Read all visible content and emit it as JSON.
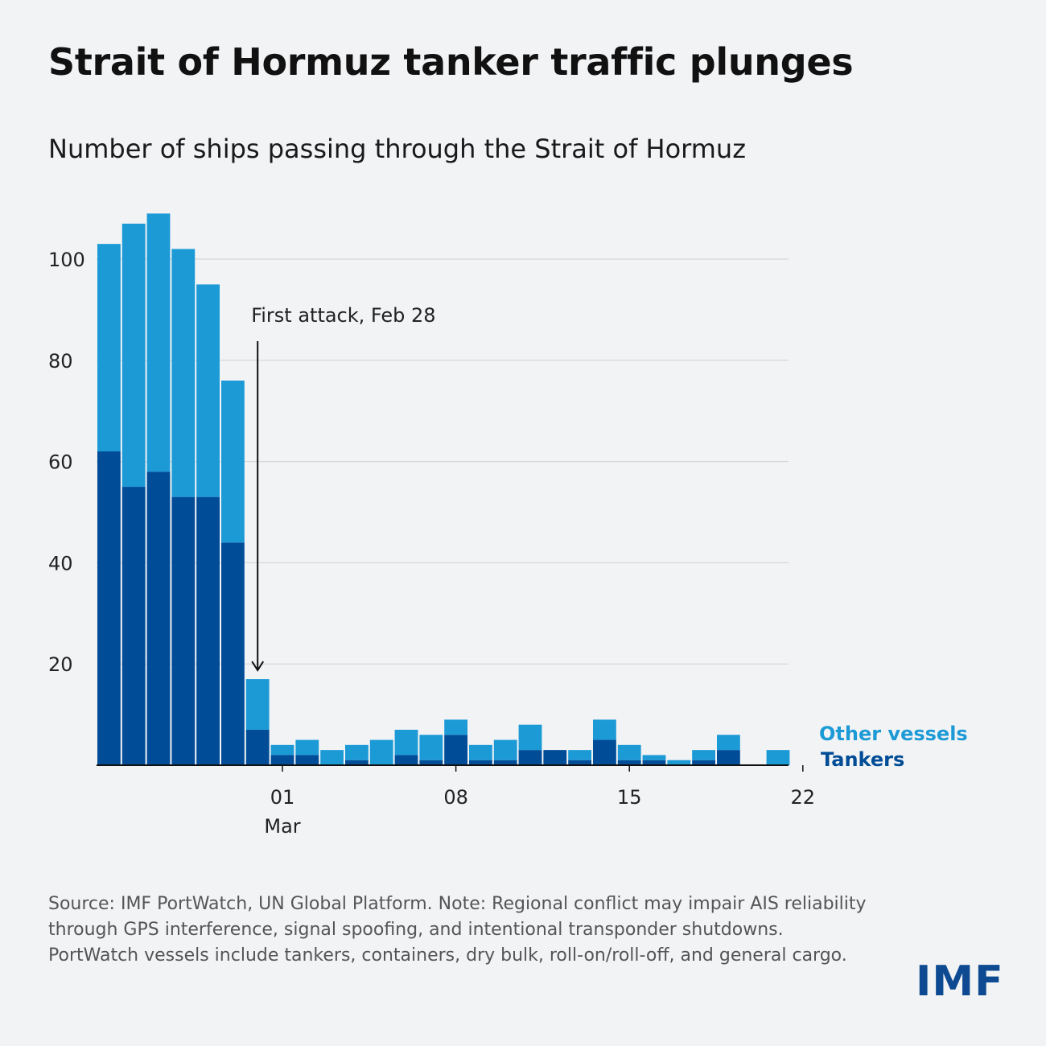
{
  "title": "Strait of Hormuz tanker traffic plunges",
  "subtitle": "Number of ships passing through the Strait of Hormuz",
  "footnote": "Source: IMF PortWatch, UN Global Platform. Note: Regional conflict may impair AIS reliability through GPS interference, signal spoofing, and intentional transponder shutdowns. PortWatch vessels include tankers, containers, dry bulk, roll-on/roll-off, and general cargo.",
  "logo": "IMF",
  "colors": {
    "tankers": "#004c97",
    "other": "#1c9ad6",
    "grid": "#d4d6da",
    "axis": "#111111"
  },
  "chart_data": {
    "type": "bar",
    "stacked": true,
    "x": [
      "Feb 22",
      "Feb 23",
      "Feb 24",
      "Feb 25",
      "Feb 26",
      "Feb 27",
      "Feb 28",
      "Mar 01",
      "Mar 02",
      "Mar 03",
      "Mar 04",
      "Mar 05",
      "Mar 06",
      "Mar 07",
      "Mar 08",
      "Mar 09",
      "Mar 10",
      "Mar 11",
      "Mar 12",
      "Mar 13",
      "Mar 14",
      "Mar 15",
      "Mar 16",
      "Mar 17",
      "Mar 18",
      "Mar 19",
      "Mar 20",
      "Mar 21",
      "Mar 22"
    ],
    "series": [
      {
        "name": "Tankers",
        "values": [
          62,
          55,
          58,
          53,
          53,
          44,
          7,
          2,
          2,
          0,
          1,
          0,
          2,
          1,
          6,
          1,
          1,
          3,
          3,
          1,
          5,
          1,
          1,
          0,
          1,
          3,
          0,
          0,
          0
        ],
        "color": "#004c97"
      },
      {
        "name": "Other vessels",
        "values": [
          41,
          52,
          51,
          49,
          42,
          32,
          10,
          2,
          3,
          3,
          3,
          5,
          5,
          5,
          3,
          3,
          4,
          5,
          0,
          2,
          4,
          3,
          1,
          1,
          2,
          3,
          0,
          3,
          0
        ],
        "color": "#1c9ad6"
      }
    ],
    "ylim": [
      0,
      110
    ],
    "yticks": [
      20,
      40,
      60,
      80,
      100
    ],
    "xtick_labels": [
      {
        "index": 7,
        "label": "01",
        "sublabel": "Mar"
      },
      {
        "index": 14,
        "label": "08",
        "sublabel": ""
      },
      {
        "index": 21,
        "label": "15",
        "sublabel": ""
      },
      {
        "index": 28,
        "label": "22",
        "sublabel": ""
      }
    ],
    "annotation": {
      "text": "First attack, Feb 28",
      "index": 6
    },
    "legend": {
      "placement": "right",
      "entries": [
        "Other vessels",
        "Tankers"
      ]
    },
    "grid": true
  }
}
